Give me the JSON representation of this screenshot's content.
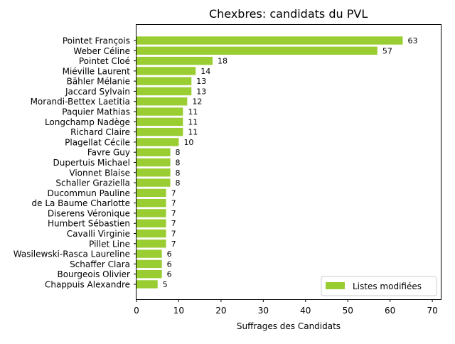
{
  "chart_data": {
    "type": "bar",
    "orientation": "horizontal",
    "title": "Chexbres: candidats du PVL",
    "xlabel": "Suffrages des Candidats",
    "ylabel": "",
    "xlim": [
      0,
      72
    ],
    "xticks": [
      0,
      10,
      20,
      30,
      40,
      50,
      60,
      70
    ],
    "grid": false,
    "legend_position": "lower-right",
    "bar_color": "#9acd32",
    "categories": [
      "Pointet François",
      "Weber Céline",
      "Pointet Cloé",
      "Miéville Laurent",
      "Bähler Mélanie",
      "Jaccard Sylvain",
      "Morandi-Bettex Laetitia",
      "Paquier Mathias",
      "Longchamp Nadège",
      "Richard Claire",
      "Plagellat Cécile",
      "Favre Guy",
      "Dupertuis Michael",
      "Vionnet Blaise",
      "Schaller Graziella",
      "Ducommun Pauline",
      "de La Baume Charlotte",
      "Diserens Véronique",
      "Humbert Sébastien",
      "Cavalli Virginie",
      "Pillet Line",
      "Wasilewski-Rasca Laureline",
      "Schaffer Clara",
      "Bourgeois Olivier",
      "Chappuis Alexandre"
    ],
    "series": [
      {
        "name": "Listes modifiées",
        "values": [
          63,
          57,
          18,
          14,
          13,
          13,
          12,
          11,
          11,
          11,
          10,
          8,
          8,
          8,
          8,
          7,
          7,
          7,
          7,
          7,
          7,
          6,
          6,
          6,
          5
        ]
      }
    ]
  }
}
